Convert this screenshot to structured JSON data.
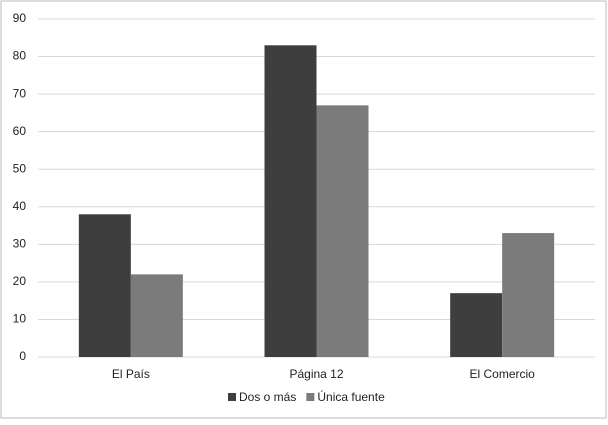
{
  "chart_data": {
    "type": "bar",
    "categories": [
      "El País",
      "Página 12",
      "El Comercio"
    ],
    "series": [
      {
        "name": "Dos o más",
        "color": "#3e3e3e",
        "values": [
          38,
          83,
          17
        ]
      },
      {
        "name": "Única fuente",
        "color": "#7b7b7b",
        "values": [
          22,
          67,
          33
        ]
      }
    ],
    "ylim": [
      0,
      90
    ],
    "yticks": [
      0,
      10,
      20,
      30,
      40,
      50,
      60,
      70,
      80,
      90
    ],
    "grid": true,
    "legend": "bottom"
  }
}
